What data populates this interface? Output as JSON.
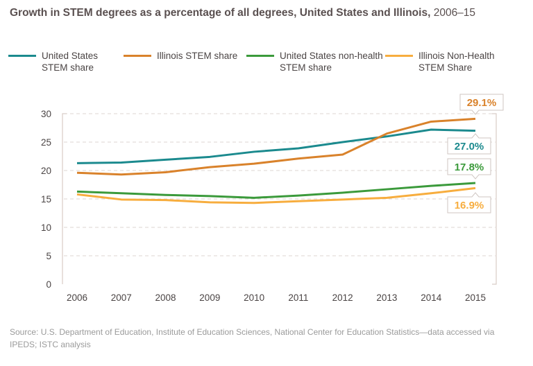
{
  "title": {
    "main": "Growth in STEM degrees as a percentage of all degrees, United States and Illinois,",
    "years": "2006–15"
  },
  "source": "Source: U.S. Department of Education, Institute of Education Sciences, National Center for Education Statistics—data accessed via IPEDS; ISTC analysis",
  "chart_data": {
    "type": "line",
    "x": [
      "2006",
      "2007",
      "2008",
      "2009",
      "2010",
      "2011",
      "2012",
      "2013",
      "2014",
      "2015"
    ],
    "yticks": [
      "0",
      "5",
      "10",
      "15",
      "20",
      "25",
      "30"
    ],
    "ylim": [
      0,
      30
    ],
    "grid": true,
    "legend": "top",
    "series": [
      {
        "name": "United States STEM share",
        "line1": "United States",
        "line2": "STEM share",
        "color": "#1b8a8e",
        "values": [
          21.3,
          21.4,
          21.9,
          22.4,
          23.3,
          23.9,
          25.0,
          26.0,
          27.2,
          27.0
        ],
        "end_label": "27.0%"
      },
      {
        "name": "Illinois STEM share",
        "line1": "Illinois STEM share",
        "line2": "",
        "color": "#d9822b",
        "values": [
          19.6,
          19.3,
          19.7,
          20.6,
          21.2,
          22.1,
          22.8,
          26.5,
          28.6,
          29.1
        ],
        "end_label": "29.1%"
      },
      {
        "name": "United States non-health STEM share",
        "line1": "United States non-health",
        "line2": "STEM share",
        "color": "#3b9a3b",
        "values": [
          16.3,
          16.0,
          15.7,
          15.5,
          15.2,
          15.6,
          16.1,
          16.7,
          17.3,
          17.8
        ],
        "end_label": "17.8%"
      },
      {
        "name": "Illinois Non-Health STEM Share",
        "line1": "Illinois Non-Health",
        "line2": "STEM Share",
        "color": "#f7ad3e",
        "values": [
          15.8,
          14.9,
          14.8,
          14.4,
          14.3,
          14.6,
          14.9,
          15.2,
          16.0,
          16.9
        ],
        "end_label": "16.9%"
      }
    ]
  }
}
